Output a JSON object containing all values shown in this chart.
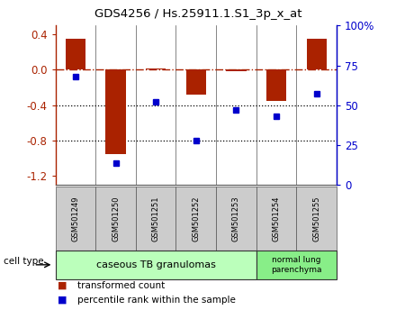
{
  "title": "GDS4256 / Hs.25911.1.S1_3p_x_at",
  "samples": [
    "GSM501249",
    "GSM501250",
    "GSM501251",
    "GSM501252",
    "GSM501253",
    "GSM501254",
    "GSM501255"
  ],
  "bar_values": [
    0.35,
    -0.95,
    0.02,
    -0.28,
    -0.02,
    -0.35,
    0.35
  ],
  "dot_values": [
    68,
    14,
    52,
    28,
    47,
    43,
    57
  ],
  "bar_color": "#AA2200",
  "dot_color": "#0000CC",
  "ylim_left": [
    -1.3,
    0.5
  ],
  "ylim_right": [
    0,
    100
  ],
  "yticks_left": [
    0.4,
    0.0,
    -0.4,
    -0.8,
    -1.2
  ],
  "yticks_right": [
    0,
    25,
    50,
    75,
    100
  ],
  "ytick_labels_right": [
    "0",
    "25",
    "50",
    "75",
    "100%"
  ],
  "hline_y": 0.0,
  "dotted_lines": [
    -0.4,
    -0.8
  ],
  "group1_count": 5,
  "group2_count": 2,
  "group1_label": "caseous TB granulomas",
  "group2_label": "normal lung\nparenchyma",
  "group1_color": "#bbffbb",
  "group2_color": "#88ee88",
  "cell_type_label": "cell type",
  "legend_bar_label": "transformed count",
  "legend_dot_label": "percentile rank within the sample",
  "xlabel_bg_color": "#cccccc",
  "plot_bg_color": "#ffffff",
  "spine_color": "#555555",
  "bar_width": 0.5
}
